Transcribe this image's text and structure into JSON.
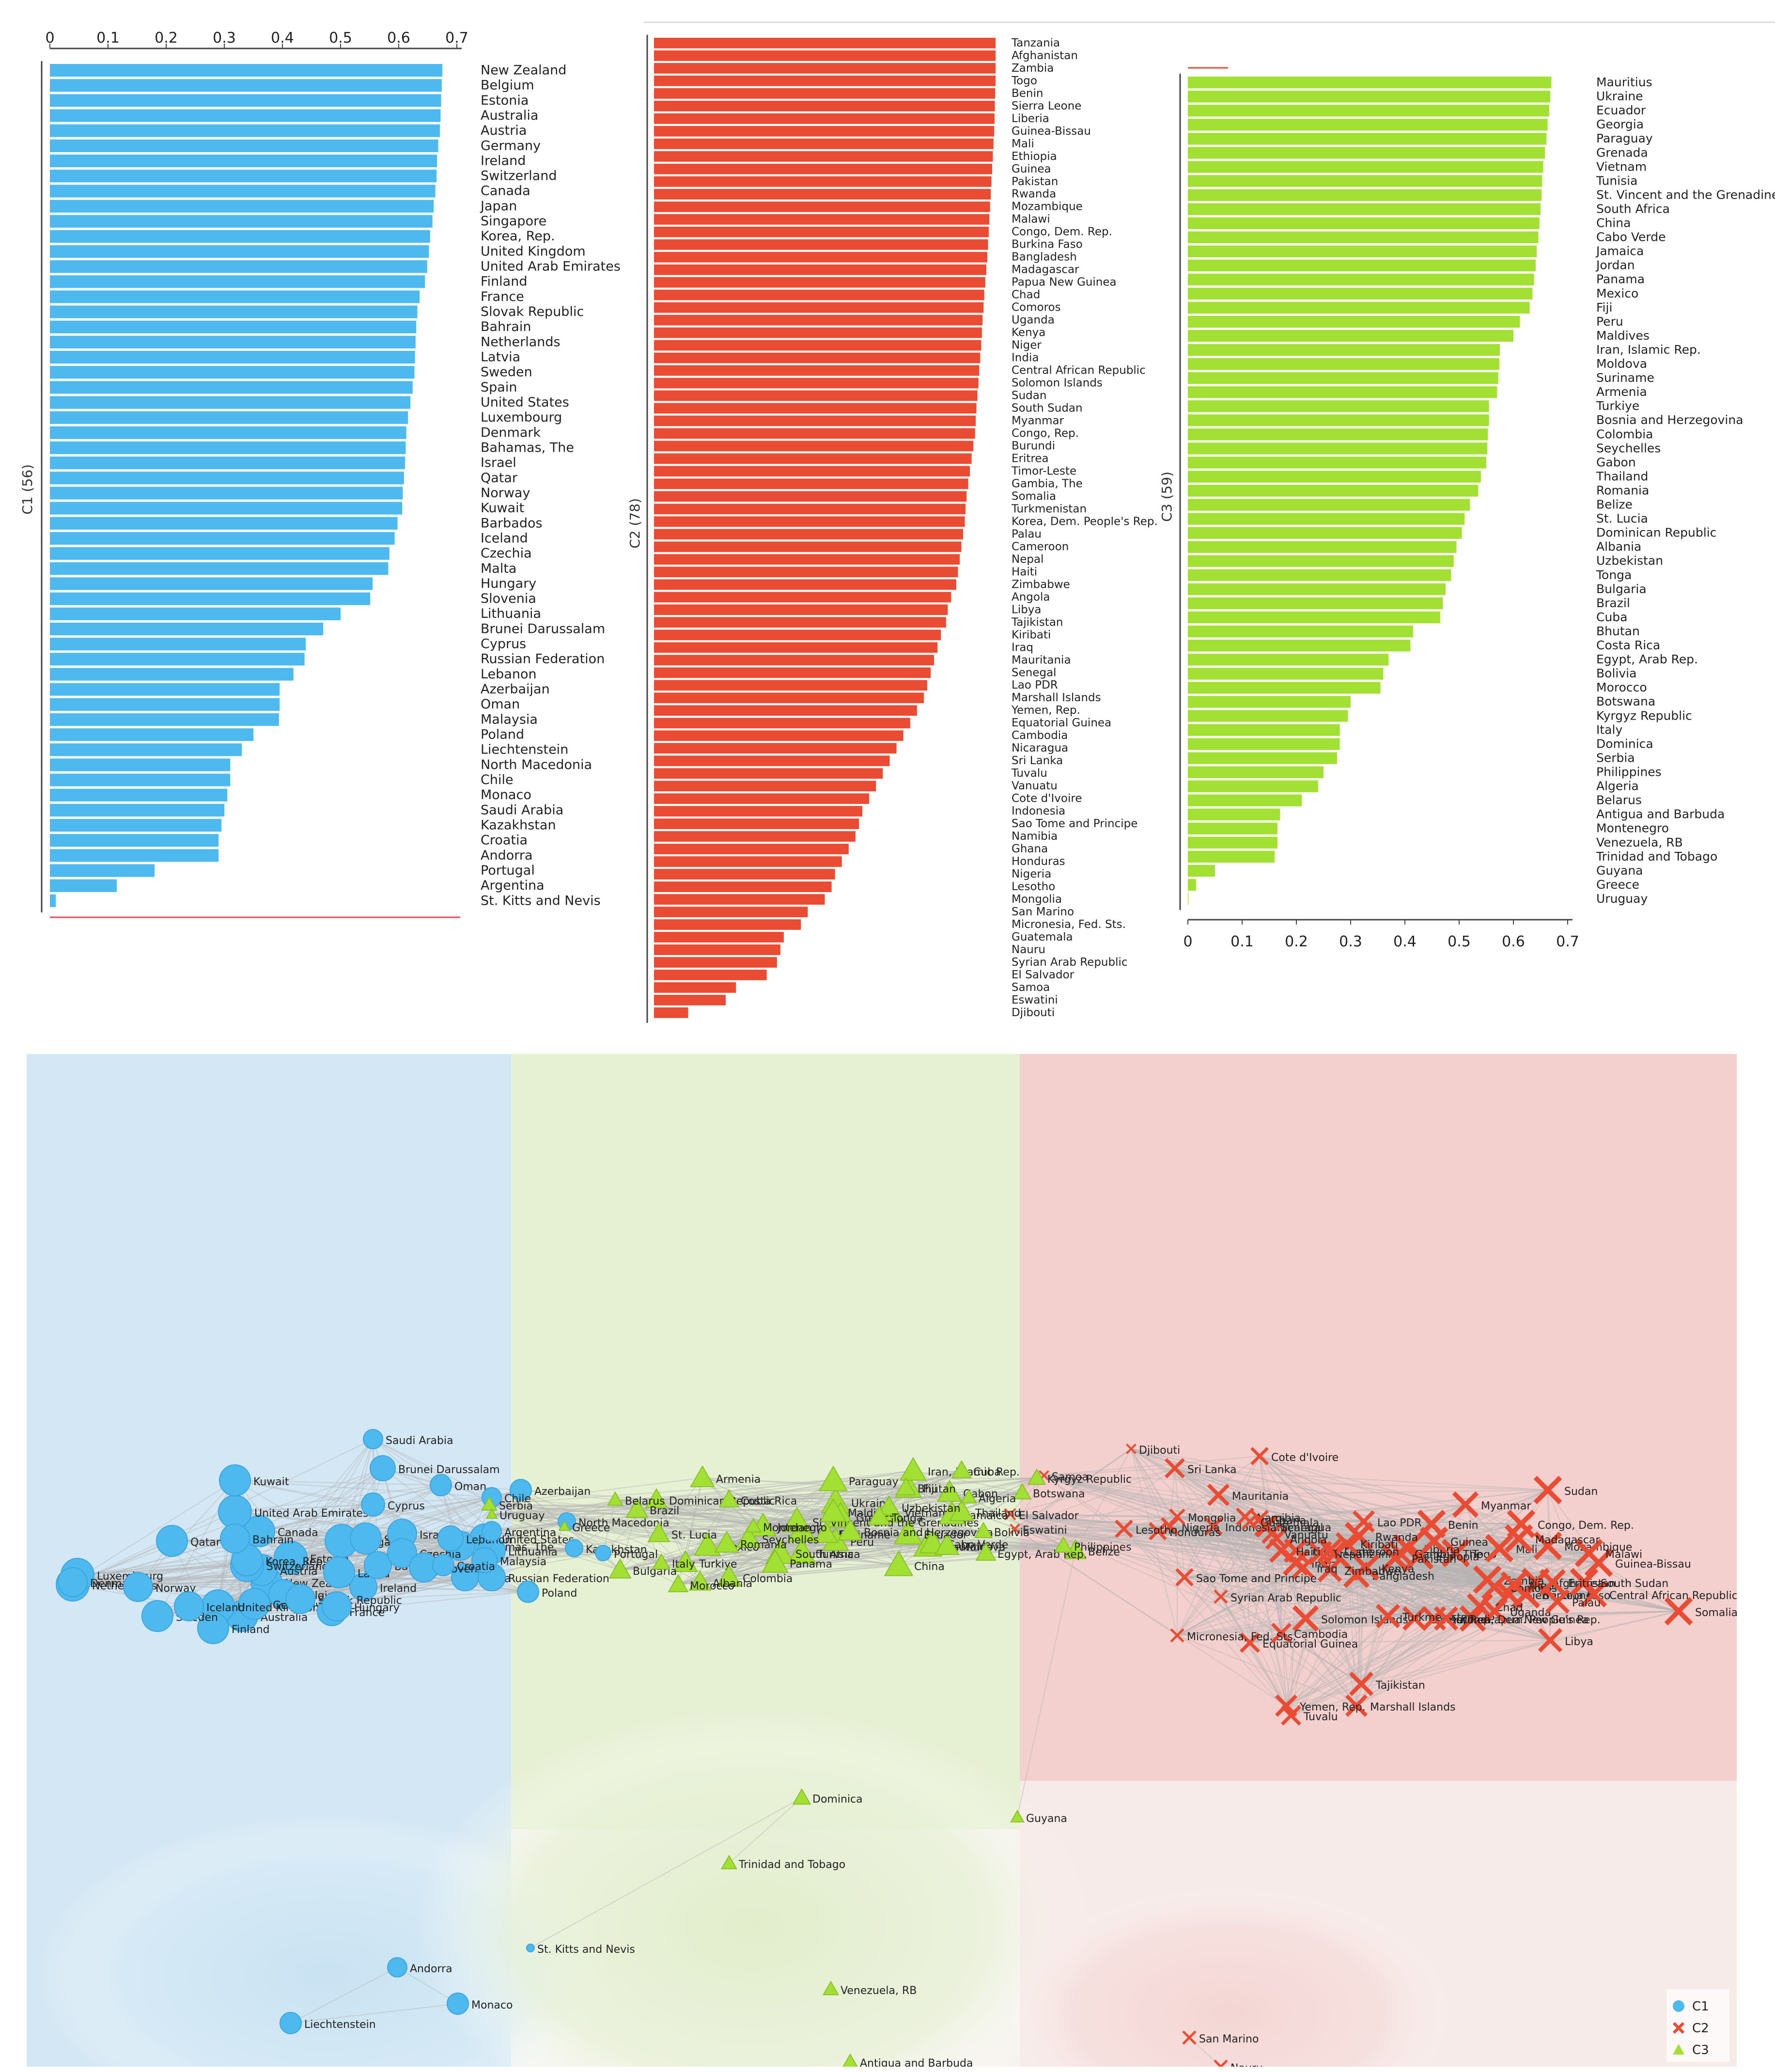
{
  "colors": {
    "c1": "#4db9ef",
    "c2": "#ea4b33",
    "c3": "#a3e034",
    "c1_region": "#cfe5f3",
    "c2_region": "#f4cccb",
    "c3_region": "#e4efcf",
    "edge": "#b3b3b3"
  },
  "chart_data": [
    {
      "type": "bar",
      "orientation": "horizontal",
      "cluster": "C1",
      "ylabel": "C1 (56)",
      "xlim": [
        0,
        0.7
      ],
      "xticks": [
        "0",
        "0.1",
        "0.2",
        "0.3",
        "0.4",
        "0.5",
        "0.6",
        "0.7"
      ],
      "axis_position": "top",
      "categories": [
        "New Zealand",
        "Belgium",
        "Estonia",
        "Australia",
        "Austria",
        "Germany",
        "Ireland",
        "Switzerland",
        "Canada",
        "Japan",
        "Singapore",
        "Korea, Rep.",
        "United Kingdom",
        "United Arab Emirates",
        "Finland",
        "France",
        "Slovak Republic",
        "Bahrain",
        "Netherlands",
        "Latvia",
        "Sweden",
        "Spain",
        "United States",
        "Luxembourg",
        "Denmark",
        "Bahamas, The",
        "Israel",
        "Qatar",
        "Norway",
        "Kuwait",
        "Barbados",
        "Iceland",
        "Czechia",
        "Malta",
        "Hungary",
        "Slovenia",
        "Lithuania",
        "Brunei Darussalam",
        "Cyprus",
        "Russian Federation",
        "Lebanon",
        "Azerbaijan",
        "Oman",
        "Malaysia",
        "Poland",
        "Liechtenstein",
        "North Macedonia",
        "Chile",
        "Monaco",
        "Saudi Arabia",
        "Kazakhstan",
        "Croatia",
        "Andorra",
        "Portugal",
        "Argentina",
        "St. Kitts and Nevis"
      ],
      "values": [
        0.675,
        0.674,
        0.673,
        0.672,
        0.671,
        0.668,
        0.666,
        0.665,
        0.663,
        0.66,
        0.658,
        0.654,
        0.652,
        0.649,
        0.645,
        0.636,
        0.632,
        0.63,
        0.629,
        0.628,
        0.627,
        0.624,
        0.62,
        0.616,
        0.613,
        0.612,
        0.611,
        0.609,
        0.607,
        0.606,
        0.598,
        0.593,
        0.584,
        0.582,
        0.555,
        0.551,
        0.5,
        0.47,
        0.44,
        0.438,
        0.419,
        0.395,
        0.395,
        0.394,
        0.35,
        0.33,
        0.31,
        0.31,
        0.305,
        0.3,
        0.295,
        0.29,
        0.29,
        0.18,
        0.115,
        0.01
      ]
    },
    {
      "type": "bar",
      "orientation": "horizontal",
      "cluster": "C2",
      "ylabel": "C2 (78)",
      "categories": [
        "Tanzania",
        "Afghanistan",
        "Zambia",
        "Togo",
        "Benin",
        "Sierra Leone",
        "Liberia",
        "Guinea-Bissau",
        "Mali",
        "Ethiopia",
        "Guinea",
        "Pakistan",
        "Rwanda",
        "Mozambique",
        "Malawi",
        "Congo, Dem. Rep.",
        "Burkina Faso",
        "Bangladesh",
        "Madagascar",
        "Papua New Guinea",
        "Chad",
        "Comoros",
        "Uganda",
        "Kenya",
        "Niger",
        "India",
        "Central African Republic",
        "Solomon Islands",
        "Sudan",
        "South Sudan",
        "Myanmar",
        "Congo, Rep.",
        "Burundi",
        "Eritrea",
        "Timor-Leste",
        "Gambia, The",
        "Somalia",
        "Turkmenistan",
        "Korea, Dem. People's Rep.",
        "Palau",
        "Cameroon",
        "Nepal",
        "Haiti",
        "Zimbabwe",
        "Angola",
        "Libya",
        "Tajikistan",
        "Kiribati",
        "Iraq",
        "Mauritania",
        "Senegal",
        "Lao PDR",
        "Marshall Islands",
        "Yemen, Rep.",
        "Equatorial Guinea",
        "Cambodia",
        "Nicaragua",
        "Sri Lanka",
        "Tuvalu",
        "Vanuatu",
        "Cote d'Ivoire",
        "Indonesia",
        "Sao Tome and Principe",
        "Namibia",
        "Ghana",
        "Honduras",
        "Nigeria",
        "Lesotho",
        "Mongolia",
        "San Marino",
        "Micronesia, Fed. Sts.",
        "Guatemala",
        "Nauru",
        "Syrian Arab Republic",
        "El Salvador",
        "Samoa",
        "Eswatini",
        "Djibouti"
      ],
      "values": [
        1.0,
        1.0,
        1.0,
        1.0,
        0.999,
        0.998,
        0.997,
        0.996,
        0.994,
        0.992,
        0.99,
        0.988,
        0.986,
        0.984,
        0.982,
        0.98,
        0.978,
        0.976,
        0.973,
        0.97,
        0.967,
        0.965,
        0.962,
        0.96,
        0.958,
        0.955,
        0.952,
        0.95,
        0.947,
        0.944,
        0.942,
        0.94,
        0.935,
        0.93,
        0.925,
        0.92,
        0.915,
        0.912,
        0.91,
        0.905,
        0.9,
        0.895,
        0.89,
        0.885,
        0.87,
        0.86,
        0.855,
        0.84,
        0.83,
        0.82,
        0.81,
        0.8,
        0.79,
        0.77,
        0.75,
        0.73,
        0.71,
        0.69,
        0.67,
        0.65,
        0.63,
        0.61,
        0.6,
        0.59,
        0.57,
        0.55,
        0.53,
        0.52,
        0.5,
        0.45,
        0.43,
        0.38,
        0.37,
        0.36,
        0.33,
        0.24,
        0.21,
        0.1
      ]
    },
    {
      "type": "bar",
      "orientation": "horizontal",
      "cluster": "C3",
      "ylabel": "C3 (59)",
      "xlim": [
        0,
        0.7
      ],
      "xticks": [
        "0",
        "0.1",
        "0.2",
        "0.3",
        "0.4",
        "0.5",
        "0.6",
        "0.7"
      ],
      "axis_position": "bottom",
      "categories": [
        "Mauritius",
        "Ukraine",
        "Ecuador",
        "Georgia",
        "Paraguay",
        "Grenada",
        "Vietnam",
        "Tunisia",
        "St. Vincent and the Grenadines",
        "South Africa",
        "China",
        "Cabo Verde",
        "Jamaica",
        "Jordan",
        "Panama",
        "Mexico",
        "Fiji",
        "Peru",
        "Maldives",
        "Iran, Islamic Rep.",
        "Moldova",
        "Suriname",
        "Armenia",
        "Turkiye",
        "Bosnia and Herzegovina",
        "Colombia",
        "Seychelles",
        "Gabon",
        "Thailand",
        "Romania",
        "Belize",
        "St. Lucia",
        "Dominican Republic",
        "Albania",
        "Uzbekistan",
        "Tonga",
        "Bulgaria",
        "Brazil",
        "Cuba",
        "Bhutan",
        "Costa Rica",
        "Egypt, Arab Rep.",
        "Bolivia",
        "Morocco",
        "Botswana",
        "Kyrgyz Republic",
        "Italy",
        "Dominica",
        "Serbia",
        "Philippines",
        "Algeria",
        "Belarus",
        "Antigua and Barbuda",
        "Montenegro",
        "Venezuela, RB",
        "Trinidad and Tobago",
        "Guyana",
        "Greece",
        "Uruguay"
      ],
      "values": [
        0.67,
        0.668,
        0.666,
        0.663,
        0.661,
        0.658,
        0.655,
        0.653,
        0.652,
        0.65,
        0.648,
        0.646,
        0.643,
        0.641,
        0.638,
        0.635,
        0.63,
        0.612,
        0.6,
        0.575,
        0.574,
        0.572,
        0.57,
        0.555,
        0.555,
        0.553,
        0.552,
        0.55,
        0.54,
        0.535,
        0.52,
        0.51,
        0.505,
        0.495,
        0.49,
        0.485,
        0.475,
        0.47,
        0.465,
        0.415,
        0.41,
        0.37,
        0.36,
        0.355,
        0.3,
        0.295,
        0.28,
        0.28,
        0.275,
        0.25,
        0.24,
        0.21,
        0.17,
        0.165,
        0.165,
        0.16,
        0.05,
        0.015,
        0.0
      ]
    },
    {
      "type": "scatter",
      "subtype": "network",
      "legend": [
        {
          "name": "C1",
          "marker": "circle"
        },
        {
          "name": "C2",
          "marker": "cross"
        },
        {
          "name": "C3",
          "marker": "triangle"
        }
      ],
      "legend_position": "bottom-right"
    }
  ]
}
